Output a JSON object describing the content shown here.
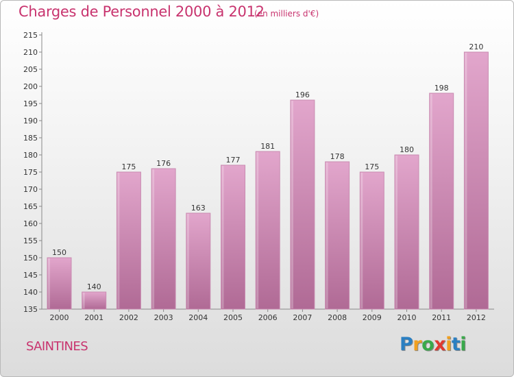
{
  "title": "Charges de Personnel 2000 à 2012",
  "subtitle": "(en milliers d'€)",
  "commune": "SAINTINES",
  "logo": {
    "text": "Proxiti",
    "letters": [
      "P",
      "r",
      "o",
      "x",
      "i",
      "t",
      "i"
    ],
    "colors": [
      "#2a7fc2",
      "#f0a020",
      "#3aa94b",
      "#e03a2f",
      "#f0a020",
      "#2a7fc2",
      "#3aa94b"
    ]
  },
  "colors": {
    "bar_top": "#e2a6cc",
    "bar_bottom": "#b06a95",
    "title": "#c8336e"
  },
  "chart_data": {
    "type": "bar",
    "categories": [
      "2000",
      "2001",
      "2002",
      "2003",
      "2004",
      "2005",
      "2006",
      "2007",
      "2008",
      "2009",
      "2010",
      "2011",
      "2012"
    ],
    "values": [
      150,
      140,
      175,
      176,
      163,
      177,
      181,
      196,
      178,
      175,
      180,
      198,
      210
    ],
    "data_labels": [
      "150",
      "140",
      "175",
      "176",
      "163",
      "177",
      "181",
      "196",
      "178",
      "175",
      "180",
      "198",
      "210"
    ],
    "title": "Charges de Personnel 2000 à 2012",
    "subtitle": "(en milliers d'€)",
    "xlabel": "",
    "ylabel": "",
    "ylim": [
      135,
      215
    ],
    "yticks": [
      135,
      140,
      145,
      150,
      155,
      160,
      165,
      170,
      175,
      180,
      185,
      190,
      195,
      200,
      205,
      210,
      215
    ],
    "ytick_labels": [
      "135",
      "140",
      "145",
      "150",
      "155",
      "160",
      "165",
      "170",
      "175",
      "180",
      "185",
      "190",
      "195",
      "200",
      "205",
      "210",
      "215"
    ],
    "grid": false,
    "legend": "none"
  }
}
